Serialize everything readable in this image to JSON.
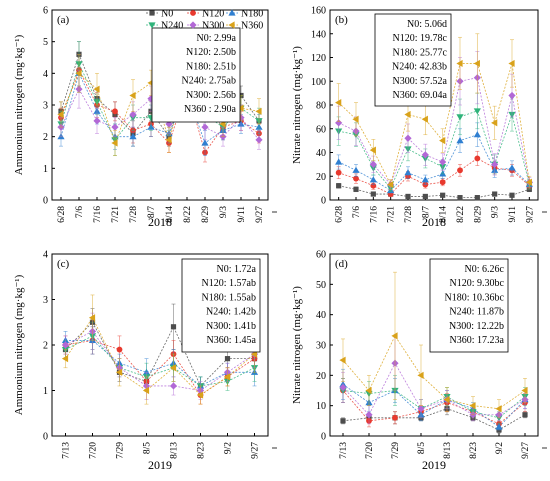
{
  "colors": {
    "N0": "#4d4d4d",
    "N120": "#e8392e",
    "N180": "#2f7fd1",
    "N240": "#2fb37a",
    "N300": "#b268d6",
    "N360": "#d9a21a"
  },
  "chart_data": [
    {
      "id": "a",
      "type": "line",
      "panel_label": "(a)",
      "xlabel": "2018",
      "ylabel": "Ammonium nitrogen (mg·kg⁻¹)",
      "ylim": [
        0,
        6
      ],
      "yticks": [
        0,
        1,
        2,
        3,
        4,
        5,
        6
      ],
      "categories": [
        "6/28",
        "7/6",
        "7/16",
        "7/21",
        "7/28",
        "8/7",
        "8/14",
        "8/22",
        "8/29",
        "9/3",
        "9/11",
        "9/27"
      ],
      "legend": {
        "placement": "top-right",
        "columns": 3
      },
      "summary": [
        "N0:  2.99a",
        "N120: 2.50b",
        "N180: 2.51b",
        "N240: 2.75ab",
        "N300: 2.56b",
        "N360 : 2.90a"
      ],
      "series": [
        {
          "name": "N0",
          "marker": "square",
          "values": [
            2.8,
            4.6,
            3.2,
            2.7,
            2.1,
            2.8,
            2.0,
            4.0,
            3.4,
            2.2,
            3.3,
            2.5
          ],
          "err": [
            0.3,
            0.4,
            0.3,
            0.4,
            0.4,
            0.3,
            0.3,
            0.3,
            0.4,
            0.3,
            0.3,
            0.3
          ]
        },
        {
          "name": "N120",
          "marker": "circle",
          "values": [
            2.6,
            4.1,
            3.0,
            2.8,
            2.2,
            2.4,
            1.8,
            3.5,
            1.5,
            2.3,
            2.5,
            2.1
          ],
          "err": [
            0.3,
            0.5,
            0.4,
            0.3,
            0.4,
            0.4,
            0.3,
            0.5,
            0.3,
            0.3,
            0.3,
            0.3
          ]
        },
        {
          "name": "N180",
          "marker": "triangle",
          "values": [
            2.0,
            4.0,
            2.8,
            2.0,
            2.0,
            2.3,
            2.1,
            3.4,
            1.8,
            2.2,
            2.4,
            2.3
          ],
          "err": [
            0.3,
            0.6,
            0.4,
            0.4,
            0.3,
            0.3,
            0.3,
            0.4,
            0.4,
            0.3,
            0.3,
            0.4
          ]
        },
        {
          "name": "N240",
          "marker": "triangle-down",
          "values": [
            2.4,
            4.3,
            3.1,
            1.9,
            2.6,
            2.6,
            2.6,
            3.9,
            2.7,
            2.3,
            2.9,
            2.5
          ],
          "err": [
            0.4,
            0.7,
            0.4,
            0.5,
            0.4,
            0.4,
            0.4,
            0.4,
            0.4,
            0.3,
            0.4,
            0.4
          ]
        },
        {
          "name": "N300",
          "marker": "diamond",
          "values": [
            2.3,
            3.5,
            2.5,
            2.3,
            2.7,
            3.2,
            2.4,
            3.5,
            2.3,
            2.0,
            2.6,
            1.9
          ],
          "err": [
            0.3,
            0.6,
            0.4,
            0.3,
            0.4,
            0.4,
            0.3,
            0.4,
            0.4,
            0.3,
            0.4,
            0.3
          ]
        },
        {
          "name": "N360",
          "marker": "triangle-left",
          "values": [
            2.7,
            4.0,
            3.5,
            1.8,
            3.3,
            3.7,
            1.9,
            3.9,
            3.1,
            2.4,
            2.9,
            2.8
          ],
          "err": [
            0.4,
            0.6,
            0.5,
            0.4,
            0.5,
            0.4,
            0.4,
            0.5,
            0.5,
            0.4,
            0.4,
            0.4
          ]
        }
      ]
    },
    {
      "id": "b",
      "type": "line",
      "panel_label": "(b)",
      "xlabel": "2018",
      "ylabel": "Nitrate nitrogen (mg·kg⁻¹)",
      "ylim": [
        0,
        160
      ],
      "yticks": [
        0,
        20,
        40,
        60,
        80,
        100,
        120,
        140,
        160
      ],
      "categories": [
        "6/28",
        "7/6",
        "7/16",
        "7/21",
        "7/28",
        "8/7",
        "8/14",
        "8/22",
        "8/29",
        "9/3",
        "9/11",
        "9/27"
      ],
      "summary": [
        "N0:  5.06d",
        "N120: 19.78c",
        "N180: 25.77c",
        "N240: 42.83b",
        "N300: 57.52a",
        "N360: 69.04a"
      ],
      "series": [
        {
          "name": "N0",
          "marker": "square",
          "values": [
            12,
            9,
            5,
            5,
            3,
            3,
            4,
            2,
            2,
            5,
            4,
            9
          ],
          "err": [
            2,
            2,
            1,
            1,
            1,
            1,
            1,
            1,
            1,
            1,
            1,
            2
          ]
        },
        {
          "name": "N120",
          "marker": "circle",
          "values": [
            23,
            18,
            12,
            5,
            20,
            13,
            15,
            25,
            35,
            27,
            25,
            12
          ],
          "err": [
            5,
            4,
            3,
            2,
            4,
            3,
            3,
            5,
            6,
            5,
            5,
            3
          ]
        },
        {
          "name": "N180",
          "marker": "triangle",
          "values": [
            32,
            25,
            17,
            8,
            23,
            17,
            22,
            50,
            55,
            25,
            27,
            13
          ],
          "err": [
            6,
            5,
            4,
            2,
            5,
            4,
            4,
            10,
            10,
            6,
            6,
            3
          ]
        },
        {
          "name": "N240",
          "marker": "triangle-down",
          "values": [
            58,
            55,
            27,
            10,
            43,
            35,
            28,
            70,
            75,
            30,
            72,
            13
          ],
          "err": [
            12,
            10,
            6,
            3,
            10,
            8,
            6,
            15,
            15,
            8,
            14,
            4
          ]
        },
        {
          "name": "N300",
          "marker": "diamond",
          "values": [
            65,
            58,
            30,
            13,
            52,
            38,
            32,
            100,
            103,
            30,
            88,
            15
          ],
          "err": [
            14,
            12,
            7,
            4,
            12,
            9,
            7,
            20,
            22,
            9,
            18,
            4
          ]
        },
        {
          "name": "N360",
          "marker": "triangle-left",
          "values": [
            82,
            68,
            42,
            13,
            72,
            68,
            50,
            115,
            115,
            65,
            115,
            15
          ],
          "err": [
            16,
            14,
            9,
            4,
            14,
            13,
            10,
            22,
            25,
            14,
            20,
            5
          ]
        }
      ]
    },
    {
      "id": "c",
      "type": "line",
      "panel_label": "(c)",
      "xlabel": "2019",
      "ylabel": "Ammonium nitrogen (mg·kg⁻¹)",
      "ylim": [
        0,
        4
      ],
      "yticks": [
        0,
        1,
        2,
        3,
        4
      ],
      "categories": [
        "7/13",
        "7/20",
        "7/29",
        "8/5",
        "8/13",
        "8/23",
        "9/2",
        "9/27"
      ],
      "summary": [
        "N0:  1.72a",
        "N120: 1.57ab",
        "N180: 1.55ab",
        "N240: 1.42b",
        "N300: 1.41b",
        "N360: 1.45a"
      ],
      "series": [
        {
          "name": "N0",
          "marker": "square",
          "values": [
            1.9,
            2.5,
            1.4,
            1.2,
            2.4,
            1.1,
            1.7,
            1.7
          ],
          "err": [
            0.2,
            0.3,
            0.2,
            0.2,
            0.5,
            0.2,
            0.2,
            0.3
          ]
        },
        {
          "name": "N120",
          "marker": "circle",
          "values": [
            2.0,
            2.1,
            1.9,
            1.2,
            1.8,
            0.9,
            1.3,
            1.7
          ],
          "err": [
            0.2,
            0.3,
            0.3,
            0.2,
            0.3,
            0.2,
            0.2,
            0.3
          ]
        },
        {
          "name": "N180",
          "marker": "triangle",
          "values": [
            2.1,
            2.1,
            1.6,
            1.4,
            1.6,
            1.1,
            1.4,
            1.4
          ],
          "err": [
            0.2,
            0.3,
            0.2,
            0.3,
            0.3,
            0.2,
            0.2,
            0.3
          ]
        },
        {
          "name": "N240",
          "marker": "triangle-down",
          "values": [
            1.9,
            2.2,
            1.5,
            1.3,
            1.5,
            1.1,
            1.2,
            1.5
          ],
          "err": [
            0.2,
            0.3,
            0.2,
            0.3,
            0.3,
            0.2,
            0.2,
            0.3
          ]
        },
        {
          "name": "N300",
          "marker": "diamond",
          "values": [
            2.0,
            2.3,
            1.5,
            1.1,
            1.1,
            1.0,
            1.4,
            1.8
          ],
          "err": [
            0.2,
            0.4,
            0.2,
            0.3,
            0.2,
            0.2,
            0.2,
            0.3
          ]
        },
        {
          "name": "N360",
          "marker": "triangle-left",
          "values": [
            1.7,
            2.6,
            1.4,
            1.0,
            1.5,
            0.9,
            1.3,
            1.8
          ],
          "err": [
            0.2,
            0.5,
            0.3,
            0.3,
            0.3,
            0.2,
            0.2,
            0.4
          ]
        }
      ]
    },
    {
      "id": "d",
      "type": "line",
      "panel_label": "(d)",
      "xlabel": "2019",
      "ylabel": "Nitrate nitrogen (mg·kg⁻¹)",
      "ylim": [
        0,
        60
      ],
      "yticks": [
        0,
        10,
        20,
        30,
        40,
        50,
        60
      ],
      "categories": [
        "7/13",
        "7/20",
        "7/29",
        "8/5",
        "8/13",
        "8/23",
        "9/2",
        "9/27"
      ],
      "summary": [
        "N0:  6.26c",
        "N120: 9.30bc",
        "N180: 10.36bc",
        "N240: 11.87b",
        "N300: 12.22b",
        "N360: 17.23a"
      ],
      "series": [
        {
          "name": "N0",
          "marker": "square",
          "values": [
            5,
            6,
            6,
            6,
            9,
            6,
            2,
            7
          ],
          "err": [
            1,
            1,
            2,
            1,
            2,
            1,
            1,
            1
          ]
        },
        {
          "name": "N120",
          "marker": "circle",
          "values": [
            15,
            5,
            6,
            8,
            11,
            8,
            4,
            11
          ],
          "err": [
            4,
            2,
            2,
            2,
            3,
            2,
            1,
            3
          ]
        },
        {
          "name": "N180",
          "marker": "triangle",
          "values": [
            17,
            11,
            15,
            7,
            12,
            9,
            3,
            12
          ],
          "err": [
            5,
            3,
            4,
            2,
            3,
            2,
            1,
            3
          ]
        },
        {
          "name": "N240",
          "marker": "triangle-down",
          "values": [
            15,
            14,
            15,
            9,
            13,
            8,
            6,
            13
          ],
          "err": [
            4,
            4,
            5,
            3,
            3,
            2,
            2,
            3
          ]
        },
        {
          "name": "N300",
          "marker": "diamond",
          "values": [
            16,
            7,
            24,
            9,
            12,
            7,
            7,
            12
          ],
          "err": [
            5,
            3,
            9,
            3,
            3,
            2,
            2,
            3
          ]
        },
        {
          "name": "N360",
          "marker": "triangle-left",
          "values": [
            25,
            15,
            33,
            20,
            12,
            10,
            9,
            15
          ],
          "err": [
            7,
            5,
            21,
            10,
            4,
            3,
            3,
            4
          ]
        }
      ]
    }
  ]
}
